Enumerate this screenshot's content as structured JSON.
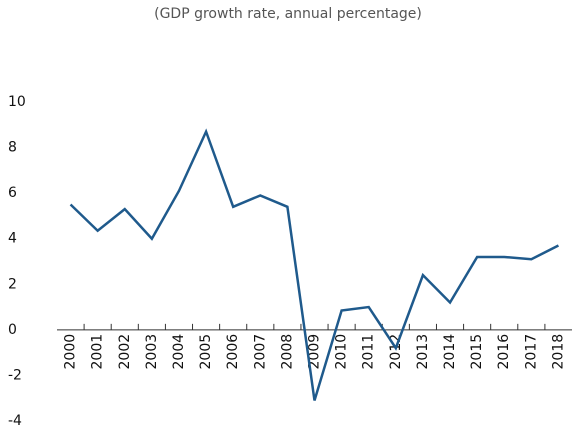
{
  "chart_data": {
    "type": "line",
    "subtitle": "(GDP growth rate, annual percentage)",
    "categories": [
      "2000",
      "2001",
      "2002",
      "2003",
      "2004",
      "2005",
      "2006",
      "2007",
      "2008",
      "2009",
      "2010",
      "2011",
      "2012",
      "2013",
      "2014",
      "2015",
      "2016",
      "2017",
      "2018"
    ],
    "series": [
      {
        "color": "#1f5a8c",
        "values": [
          5.5,
          4.35,
          5.3,
          4.0,
          6.1,
          8.7,
          5.4,
          5.9,
          5.4,
          -3.1,
          0.85,
          1.0,
          -0.8,
          2.4,
          1.2,
          3.2,
          3.2,
          3.1,
          3.7
        ]
      }
    ],
    "ylim": [
      -4,
      10
    ],
    "yticks": [
      -4,
      -2,
      0,
      2,
      4,
      6,
      8,
      10
    ],
    "grid": false
  }
}
